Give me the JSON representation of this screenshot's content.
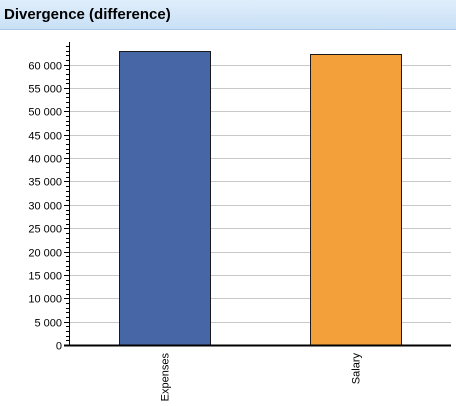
{
  "panel": {
    "title": "Divergence (difference)"
  },
  "chart_data": {
    "type": "bar",
    "categories": [
      "Expenses",
      "Salary"
    ],
    "series": [
      {
        "values": [
          63000,
          62300
        ]
      }
    ],
    "bar_colors": [
      "#4766a6",
      "#f3a03a"
    ],
    "ylim": [
      0,
      64000
    ],
    "y_ticks": [
      0,
      5000,
      10000,
      15000,
      20000,
      25000,
      30000,
      35000,
      40000,
      45000,
      50000,
      55000,
      60000
    ],
    "y_tick_labels": [
      "0",
      "5 000",
      "10 000",
      "15 000",
      "20 000",
      "25 000",
      "30 000",
      "35 000",
      "40 000",
      "45 000",
      "50 000",
      "55 000",
      "60 000"
    ],
    "grid": true,
    "legend": "none",
    "title": "",
    "xlabel": "",
    "ylabel": ""
  }
}
